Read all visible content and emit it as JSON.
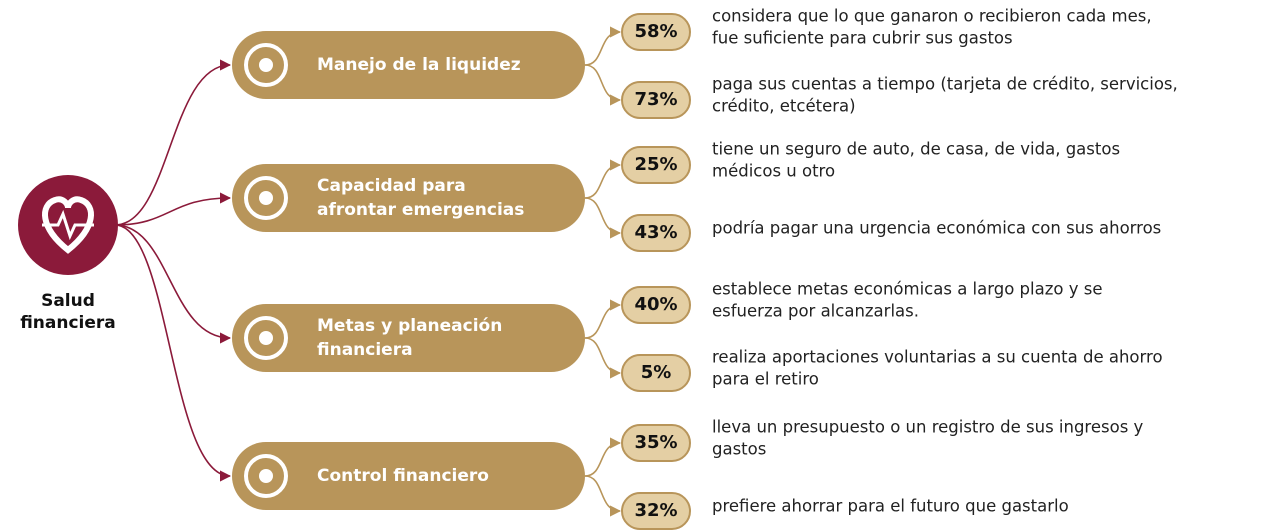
{
  "root": {
    "label": [
      "Salud",
      "financiera"
    ]
  },
  "branches": [
    {
      "label": [
        "Manejo de la liquidez"
      ],
      "items": [
        {
          "pct": "58%",
          "lines": [
            "considera que lo que ganaron o recibieron cada mes,",
            "fue suficiente para cubrir sus gastos"
          ]
        },
        {
          "pct": "73%",
          "lines": [
            "paga sus cuentas a tiempo (tarjeta de crédito, servicios,",
            "crédito, etcétera)"
          ]
        }
      ]
    },
    {
      "label": [
        "Capacidad para",
        "afrontar emergencias"
      ],
      "items": [
        {
          "pct": "25%",
          "lines": [
            "tiene un seguro de auto, de casa, de vida, gastos",
            "médicos u otro"
          ]
        },
        {
          "pct": "43%",
          "lines": [
            "podría pagar una urgencia económica con sus ahorros"
          ]
        }
      ]
    },
    {
      "label": [
        "Metas y planeación",
        "financiera"
      ],
      "items": [
        {
          "pct": "40%",
          "lines": [
            "establece metas económicas a largo plazo y se",
            "esfuerza por alcanzarlas."
          ]
        },
        {
          "pct": "5%",
          "lines": [
            "realiza aportaciones voluntarias a su cuenta de ahorro",
            "para el retiro"
          ]
        }
      ]
    },
    {
      "label": [
        "Control financiero"
      ],
      "items": [
        {
          "pct": "35%",
          "lines": [
            "lleva un presupuesto o un registro de sus ingresos y",
            "gastos"
          ]
        },
        {
          "pct": "32%",
          "lines": [
            "prefiere ahorrar para el futuro que gastarlo"
          ]
        }
      ]
    }
  ]
}
